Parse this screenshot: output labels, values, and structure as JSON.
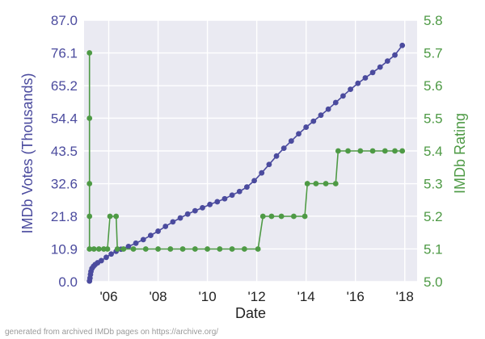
{
  "chart_data": {
    "type": "line",
    "title": "",
    "xlabel": "Date",
    "ylabel_left": "IMDb Votes (Thousands)",
    "ylabel_right": "IMDb Rating",
    "x_range": [
      2005.0,
      2018.5
    ],
    "x_ticks": [
      {
        "x": 2006,
        "label": "'06"
      },
      {
        "x": 2008,
        "label": "'08"
      },
      {
        "x": 2010,
        "label": "'10"
      },
      {
        "x": 2012,
        "label": "'12"
      },
      {
        "x": 2014,
        "label": "'14"
      },
      {
        "x": 2016,
        "label": "'16"
      },
      {
        "x": 2018,
        "label": "'18"
      }
    ],
    "y_left": {
      "range": [
        0,
        87.0
      ],
      "ticks": [
        0.0,
        10.9,
        21.8,
        32.6,
        43.5,
        54.4,
        65.2,
        76.1,
        87.0
      ],
      "tick_labels": [
        "0.0",
        "10.9",
        "21.8",
        "32.6",
        "43.5",
        "54.4",
        "65.2",
        "76.1",
        "87.0"
      ]
    },
    "y_right": {
      "range": [
        5.0,
        5.8
      ],
      "ticks": [
        5.0,
        5.1,
        5.2,
        5.3,
        5.4,
        5.5,
        5.6,
        5.7,
        5.8
      ],
      "tick_labels": [
        "5.0",
        "5.1",
        "5.2",
        "5.3",
        "5.4",
        "5.5",
        "5.6",
        "5.7",
        "5.8"
      ]
    },
    "grid": true,
    "colors": {
      "background": "#eaeaf2",
      "grid": "#ffffff",
      "votes": "#4b4b9e",
      "rating": "#4e9a45"
    },
    "series": [
      {
        "axis": "left",
        "points": [
          {
            "x": 2005.22,
            "y": 0.2
          },
          {
            "x": 2005.24,
            "y": 1.2
          },
          {
            "x": 2005.26,
            "y": 2.4
          },
          {
            "x": 2005.28,
            "y": 3.4
          },
          {
            "x": 2005.32,
            "y": 4.4
          },
          {
            "x": 2005.38,
            "y": 5.1
          },
          {
            "x": 2005.45,
            "y": 5.7
          },
          {
            "x": 2005.55,
            "y": 6.3
          },
          {
            "x": 2005.7,
            "y": 7.0
          },
          {
            "x": 2005.9,
            "y": 8.1
          },
          {
            "x": 2006.1,
            "y": 9.2
          },
          {
            "x": 2006.3,
            "y": 10.1
          },
          {
            "x": 2006.5,
            "y": 10.8
          },
          {
            "x": 2006.8,
            "y": 11.7
          },
          {
            "x": 2007.1,
            "y": 12.8
          },
          {
            "x": 2007.4,
            "y": 14.0
          },
          {
            "x": 2007.7,
            "y": 15.4
          },
          {
            "x": 2008.0,
            "y": 16.8
          },
          {
            "x": 2008.3,
            "y": 18.4
          },
          {
            "x": 2008.6,
            "y": 19.9
          },
          {
            "x": 2008.9,
            "y": 21.2
          },
          {
            "x": 2009.2,
            "y": 22.5
          },
          {
            "x": 2009.5,
            "y": 23.6
          },
          {
            "x": 2009.8,
            "y": 24.6
          },
          {
            "x": 2010.1,
            "y": 25.7
          },
          {
            "x": 2010.4,
            "y": 26.6
          },
          {
            "x": 2010.7,
            "y": 27.6
          },
          {
            "x": 2011.0,
            "y": 28.8
          },
          {
            "x": 2011.3,
            "y": 30.0
          },
          {
            "x": 2011.6,
            "y": 31.5
          },
          {
            "x": 2011.9,
            "y": 33.6
          },
          {
            "x": 2012.2,
            "y": 36.2
          },
          {
            "x": 2012.5,
            "y": 39.0
          },
          {
            "x": 2012.8,
            "y": 41.8
          },
          {
            "x": 2013.1,
            "y": 44.4
          },
          {
            "x": 2013.4,
            "y": 46.8
          },
          {
            "x": 2013.7,
            "y": 49.2
          },
          {
            "x": 2014.0,
            "y": 51.4
          },
          {
            "x": 2014.3,
            "y": 53.4
          },
          {
            "x": 2014.6,
            "y": 55.4
          },
          {
            "x": 2014.9,
            "y": 57.4
          },
          {
            "x": 2015.2,
            "y": 59.6
          },
          {
            "x": 2015.5,
            "y": 61.8
          },
          {
            "x": 2015.8,
            "y": 64.0
          },
          {
            "x": 2016.1,
            "y": 66.0
          },
          {
            "x": 2016.4,
            "y": 67.8
          },
          {
            "x": 2016.7,
            "y": 69.6
          },
          {
            "x": 2017.0,
            "y": 71.4
          },
          {
            "x": 2017.3,
            "y": 73.4
          },
          {
            "x": 2017.6,
            "y": 75.4
          },
          {
            "x": 2017.9,
            "y": 78.6
          }
        ]
      },
      {
        "axis": "right",
        "points": [
          {
            "x": 2005.22,
            "y": 5.7
          },
          {
            "x": 2005.22,
            "y": 5.5
          },
          {
            "x": 2005.22,
            "y": 5.3
          },
          {
            "x": 2005.22,
            "y": 5.2
          },
          {
            "x": 2005.22,
            "y": 5.1
          },
          {
            "x": 2005.4,
            "y": 5.1
          },
          {
            "x": 2005.6,
            "y": 5.1
          },
          {
            "x": 2005.8,
            "y": 5.1
          },
          {
            "x": 2005.95,
            "y": 5.1
          },
          {
            "x": 2006.05,
            "y": 5.2
          },
          {
            "x": 2006.3,
            "y": 5.2
          },
          {
            "x": 2006.35,
            "y": 5.1
          },
          {
            "x": 2006.6,
            "y": 5.1
          },
          {
            "x": 2007.0,
            "y": 5.1
          },
          {
            "x": 2007.5,
            "y": 5.1
          },
          {
            "x": 2008.0,
            "y": 5.1
          },
          {
            "x": 2008.5,
            "y": 5.1
          },
          {
            "x": 2009.0,
            "y": 5.1
          },
          {
            "x": 2009.5,
            "y": 5.1
          },
          {
            "x": 2010.0,
            "y": 5.1
          },
          {
            "x": 2010.5,
            "y": 5.1
          },
          {
            "x": 2011.0,
            "y": 5.1
          },
          {
            "x": 2011.5,
            "y": 5.1
          },
          {
            "x": 2012.05,
            "y": 5.1
          },
          {
            "x": 2012.25,
            "y": 5.2
          },
          {
            "x": 2012.6,
            "y": 5.2
          },
          {
            "x": 2013.0,
            "y": 5.2
          },
          {
            "x": 2013.5,
            "y": 5.2
          },
          {
            "x": 2013.95,
            "y": 5.2
          },
          {
            "x": 2014.05,
            "y": 5.3
          },
          {
            "x": 2014.4,
            "y": 5.3
          },
          {
            "x": 2014.8,
            "y": 5.3
          },
          {
            "x": 2015.2,
            "y": 5.3
          },
          {
            "x": 2015.3,
            "y": 5.4
          },
          {
            "x": 2015.7,
            "y": 5.4
          },
          {
            "x": 2016.2,
            "y": 5.4
          },
          {
            "x": 2016.7,
            "y": 5.4
          },
          {
            "x": 2017.2,
            "y": 5.4
          },
          {
            "x": 2017.6,
            "y": 5.4
          },
          {
            "x": 2017.9,
            "y": 5.4
          }
        ]
      }
    ]
  },
  "footer": {
    "credit": "generated from archived IMDb pages on https://archive.org/"
  }
}
